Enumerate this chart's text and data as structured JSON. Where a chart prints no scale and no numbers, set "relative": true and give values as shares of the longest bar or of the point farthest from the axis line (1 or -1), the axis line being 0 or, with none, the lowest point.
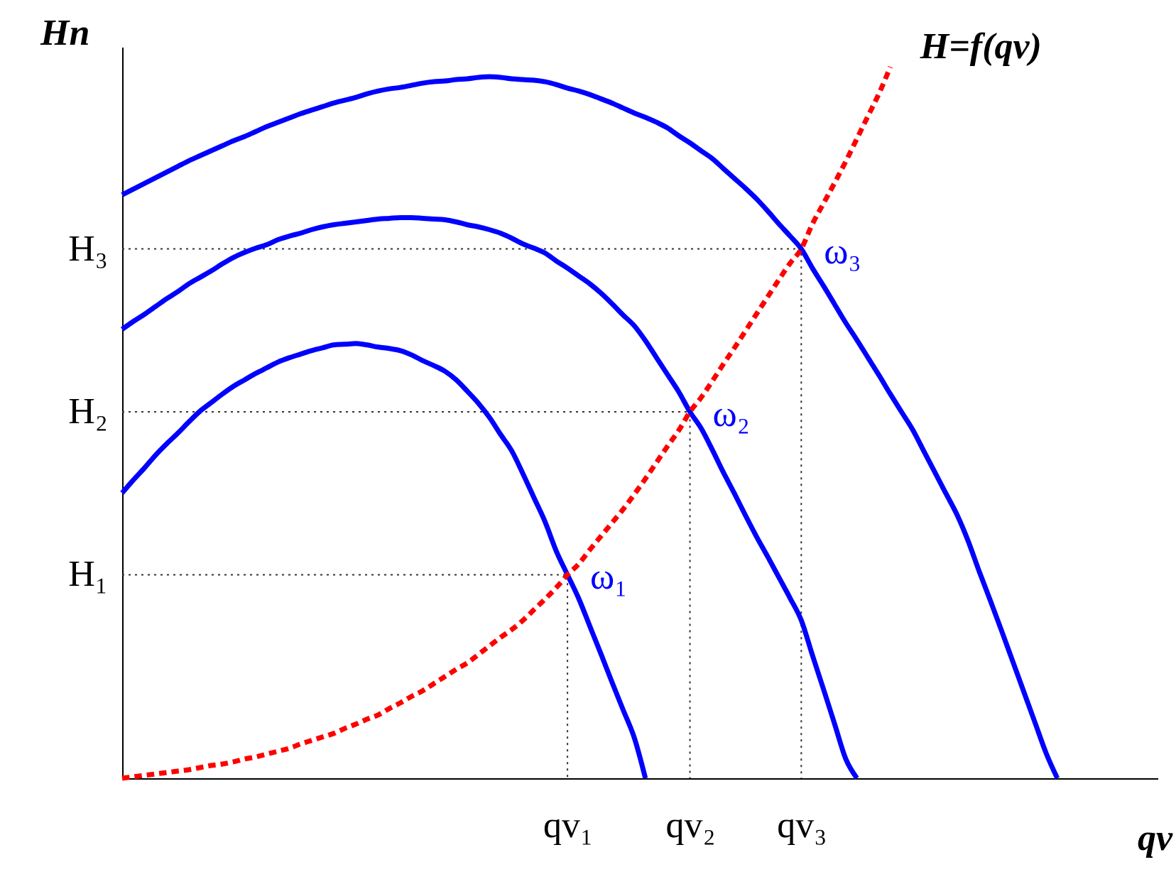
{
  "chart_data": {
    "type": "line",
    "relative": true,
    "line_style": "solid",
    "xlabel": "qv",
    "ylabel": "Hn",
    "categories": [
      null,
      null,
      null,
      null,
      null,
      null,
      null,
      null,
      null,
      null,
      null,
      null,
      null,
      null,
      null,
      null,
      null,
      null,
      null,
      null,
      null,
      null,
      null,
      null,
      null,
      null,
      null,
      null,
      null,
      null,
      null,
      null,
      null,
      null,
      null,
      null,
      null,
      null,
      null,
      null,
      "qv₁",
      null,
      null,
      null,
      null,
      null,
      null,
      null,
      null,
      null,
      null,
      "qv₂",
      null,
      null,
      null,
      null,
      null,
      null,
      null,
      null,
      null,
      "qv₃",
      null,
      null,
      null,
      null,
      null,
      null,
      null,
      null,
      null,
      null,
      null,
      null,
      null,
      null,
      null,
      null,
      null,
      null,
      null,
      null,
      null,
      null,
      null,
      null,
      null,
      null,
      null,
      null,
      null,
      null,
      null,
      null
    ],
    "series": [
      {
        "name": "H₁",
        "type": "step",
        "line_style": "dotted",
        "color": "#333333",
        "values": [
          0.286,
          0.286,
          0.286,
          0.286,
          0.286,
          0.286,
          0.286,
          0.286,
          0.286,
          0.286,
          0.286,
          0.286,
          0.286,
          0.286,
          0.286,
          0.286,
          0.286,
          0.286,
          0.286,
          0.286,
          0.286,
          0.286,
          0.286,
          0.286,
          0.286,
          0.286,
          0.286,
          0.286,
          0.286,
          0.286,
          0.286,
          0.286,
          0.286,
          0.286,
          0.286,
          0.286,
          0.286,
          0.286,
          0.286,
          0.286,
          0,
          null,
          null,
          null,
          null,
          null,
          null,
          null,
          null,
          null,
          null,
          null,
          null,
          null,
          null,
          null,
          null,
          null,
          null,
          null,
          null,
          null,
          null,
          null,
          null,
          null,
          null,
          null,
          null,
          null,
          null,
          null,
          null,
          null,
          null,
          null,
          null,
          null,
          null,
          null,
          null,
          null,
          null,
          null,
          null,
          null,
          null,
          null,
          null,
          null,
          null,
          null,
          null,
          null
        ]
      },
      {
        "name": "H₂",
        "type": "step",
        "line_style": "dotted",
        "color": "#333333",
        "values": [
          0.515,
          0.515,
          0.515,
          0.515,
          0.515,
          0.515,
          0.515,
          0.515,
          0.515,
          0.515,
          0.515,
          0.515,
          0.515,
          0.515,
          0.515,
          0.515,
          0.515,
          0.515,
          0.515,
          0.515,
          0.515,
          0.515,
          0.515,
          0.515,
          0.515,
          0.515,
          0.515,
          0.515,
          0.515,
          0.515,
          0.515,
          0.515,
          0.515,
          0.515,
          0.515,
          0.515,
          0.515,
          0.515,
          0.515,
          0.515,
          0.515,
          0.515,
          0.515,
          0.515,
          0.515,
          0.515,
          0.515,
          0.515,
          0.515,
          0.515,
          0.515,
          0,
          null,
          null,
          null,
          null,
          null,
          null,
          null,
          null,
          null,
          null,
          null,
          null,
          null,
          null,
          null,
          null,
          null,
          null,
          null,
          null,
          null,
          null,
          null,
          null,
          null,
          null,
          null,
          null,
          null,
          null,
          null,
          null,
          null,
          null,
          null,
          null,
          null,
          null,
          null,
          null,
          null,
          null
        ]
      },
      {
        "name": "H₃",
        "type": "step",
        "line_style": "dotted",
        "color": "#333333",
        "values": [
          0.744,
          0.744,
          0.744,
          0.744,
          0.744,
          0.744,
          0.744,
          0.744,
          0.744,
          0.744,
          0.744,
          0.744,
          0.744,
          0.744,
          0.744,
          0.744,
          0.744,
          0.744,
          0.744,
          0.744,
          0.744,
          0.744,
          0.744,
          0.744,
          0.744,
          0.744,
          0.744,
          0.744,
          0.744,
          0.744,
          0.744,
          0.744,
          0.744,
          0.744,
          0.744,
          0.744,
          0.744,
          0.744,
          0.744,
          0.744,
          0.744,
          0.744,
          0.744,
          0.744,
          0.744,
          0.744,
          0.744,
          0.744,
          0.744,
          0.744,
          0.744,
          0.744,
          0.744,
          0.744,
          0.744,
          0.744,
          0.744,
          0.744,
          0.744,
          0.744,
          0.744,
          0,
          null,
          null,
          null,
          null,
          null,
          null,
          null,
          null,
          null,
          null,
          null,
          null,
          null,
          null,
          null,
          null,
          null,
          null,
          null,
          null,
          null,
          null,
          null,
          null,
          null,
          null,
          null,
          null,
          null,
          null,
          null,
          null
        ]
      },
      {
        "name": "ω₁",
        "color": "#0000ff",
        "values": [
          0.401,
          0.419,
          0.436,
          0.454,
          0.47,
          0.485,
          0.501,
          0.516,
          0.528,
          0.54,
          0.551,
          0.56,
          0.569,
          0.577,
          0.585,
          0.591,
          0.596,
          0.601,
          0.605,
          0.609,
          0.61,
          0.611,
          0.609,
          0.606,
          0.604,
          0.601,
          0.595,
          0.587,
          0.58,
          0.572,
          0.56,
          0.544,
          0.527,
          0.507,
          0.483,
          0.46,
          0.428,
          0.394,
          0.36,
          0.319,
          0.286,
          0.253,
          0.214,
          0.175,
          0.135,
          0.096,
          0.057,
          0,
          null,
          null,
          null,
          null,
          null,
          null,
          null,
          null,
          null,
          null,
          null,
          null,
          null,
          null,
          null,
          null,
          null,
          null,
          null,
          null,
          null,
          null,
          null,
          null,
          null,
          null,
          null,
          null,
          null,
          null,
          null,
          null,
          null,
          null,
          null,
          null,
          null,
          null,
          null,
          null,
          null,
          null,
          null,
          null,
          null,
          null
        ]
      },
      {
        "name": "ω₂",
        "color": "#0000ff",
        "values": [
          0.631,
          0.642,
          0.652,
          0.663,
          0.674,
          0.684,
          0.695,
          0.704,
          0.713,
          0.723,
          0.732,
          0.739,
          0.745,
          0.75,
          0.757,
          0.762,
          0.766,
          0.771,
          0.775,
          0.778,
          0.78,
          0.782,
          0.784,
          0.786,
          0.787,
          0.788,
          0.788,
          0.787,
          0.786,
          0.785,
          0.782,
          0.778,
          0.775,
          0.771,
          0.766,
          0.759,
          0.751,
          0.745,
          0.738,
          0.727,
          0.717,
          0.706,
          0.695,
          0.682,
          0.667,
          0.651,
          0.636,
          0.615,
          0.591,
          0.567,
          0.543,
          0.515,
          0.492,
          0.462,
          0.43,
          0.4,
          0.369,
          0.339,
          0.311,
          0.282,
          0.253,
          0.222,
          0.173,
          0.125,
          0.076,
          0.027,
          0,
          null,
          null,
          null,
          null,
          null,
          null,
          null,
          null,
          null,
          null,
          null,
          null,
          null,
          null,
          null,
          null,
          null,
          null,
          null,
          null,
          null,
          null,
          null,
          null,
          null,
          null,
          null
        ]
      },
      {
        "name": "ω₃",
        "color": "#0000ff",
        "values": [
          0.82,
          0.828,
          0.836,
          0.844,
          0.852,
          0.86,
          0.868,
          0.875,
          0.882,
          0.889,
          0.896,
          0.902,
          0.909,
          0.916,
          0.922,
          0.928,
          0.934,
          0.939,
          0.944,
          0.949,
          0.953,
          0.957,
          0.962,
          0.966,
          0.969,
          0.971,
          0.974,
          0.977,
          0.979,
          0.98,
          0.982,
          0.983,
          0.985,
          0.986,
          0.985,
          0.983,
          0.982,
          0.981,
          0.979,
          0.975,
          0.97,
          0.966,
          0.961,
          0.955,
          0.949,
          0.942,
          0.935,
          0.929,
          0.922,
          0.914,
          0.903,
          0.893,
          0.882,
          0.871,
          0.857,
          0.843,
          0.829,
          0.814,
          0.797,
          0.779,
          0.762,
          0.744,
          0.717,
          0.692,
          0.666,
          0.64,
          0.616,
          0.591,
          0.566,
          0.54,
          0.515,
          0.49,
          0.46,
          0.43,
          0.4,
          0.37,
          0.333,
          0.29,
          0.249,
          0.207,
          0.164,
          0.121,
          0.078,
          0.035,
          0,
          null,
          null,
          null,
          null,
          null,
          null,
          null,
          null,
          null
        ]
      },
      {
        "name": "H=f(qv)",
        "color": "#ff0000",
        "line_style": "dotted",
        "values": [
          0,
          0.002,
          0.004,
          0.006,
          0.008,
          0.01,
          0.012,
          0.015,
          0.018,
          0.02,
          0.023,
          0.027,
          0.03,
          0.034,
          0.038,
          0.042,
          0.048,
          0.053,
          0.058,
          0.063,
          0.07,
          0.076,
          0.083,
          0.089,
          0.098,
          0.106,
          0.115,
          0.123,
          0.133,
          0.143,
          0.153,
          0.162,
          0.174,
          0.186,
          0.198,
          0.209,
          0.222,
          0.237,
          0.252,
          0.268,
          0.286,
          0.301,
          0.321,
          0.34,
          0.359,
          0.378,
          0.399,
          0.421,
          0.444,
          0.467,
          0.489,
          0.515,
          0.535,
          0.558,
          0.582,
          0.605,
          0.629,
          0.653,
          0.677,
          0.701,
          0.724,
          0.744,
          0.779,
          0.808,
          0.837,
          0.867,
          0.899,
          0.931,
          0.963,
          1,
          null,
          null,
          null,
          null,
          null,
          null,
          null,
          null,
          null,
          null,
          null,
          null,
          null,
          null,
          null,
          null,
          null,
          null,
          null,
          null,
          null,
          null,
          null,
          null
        ]
      }
    ]
  }
}
